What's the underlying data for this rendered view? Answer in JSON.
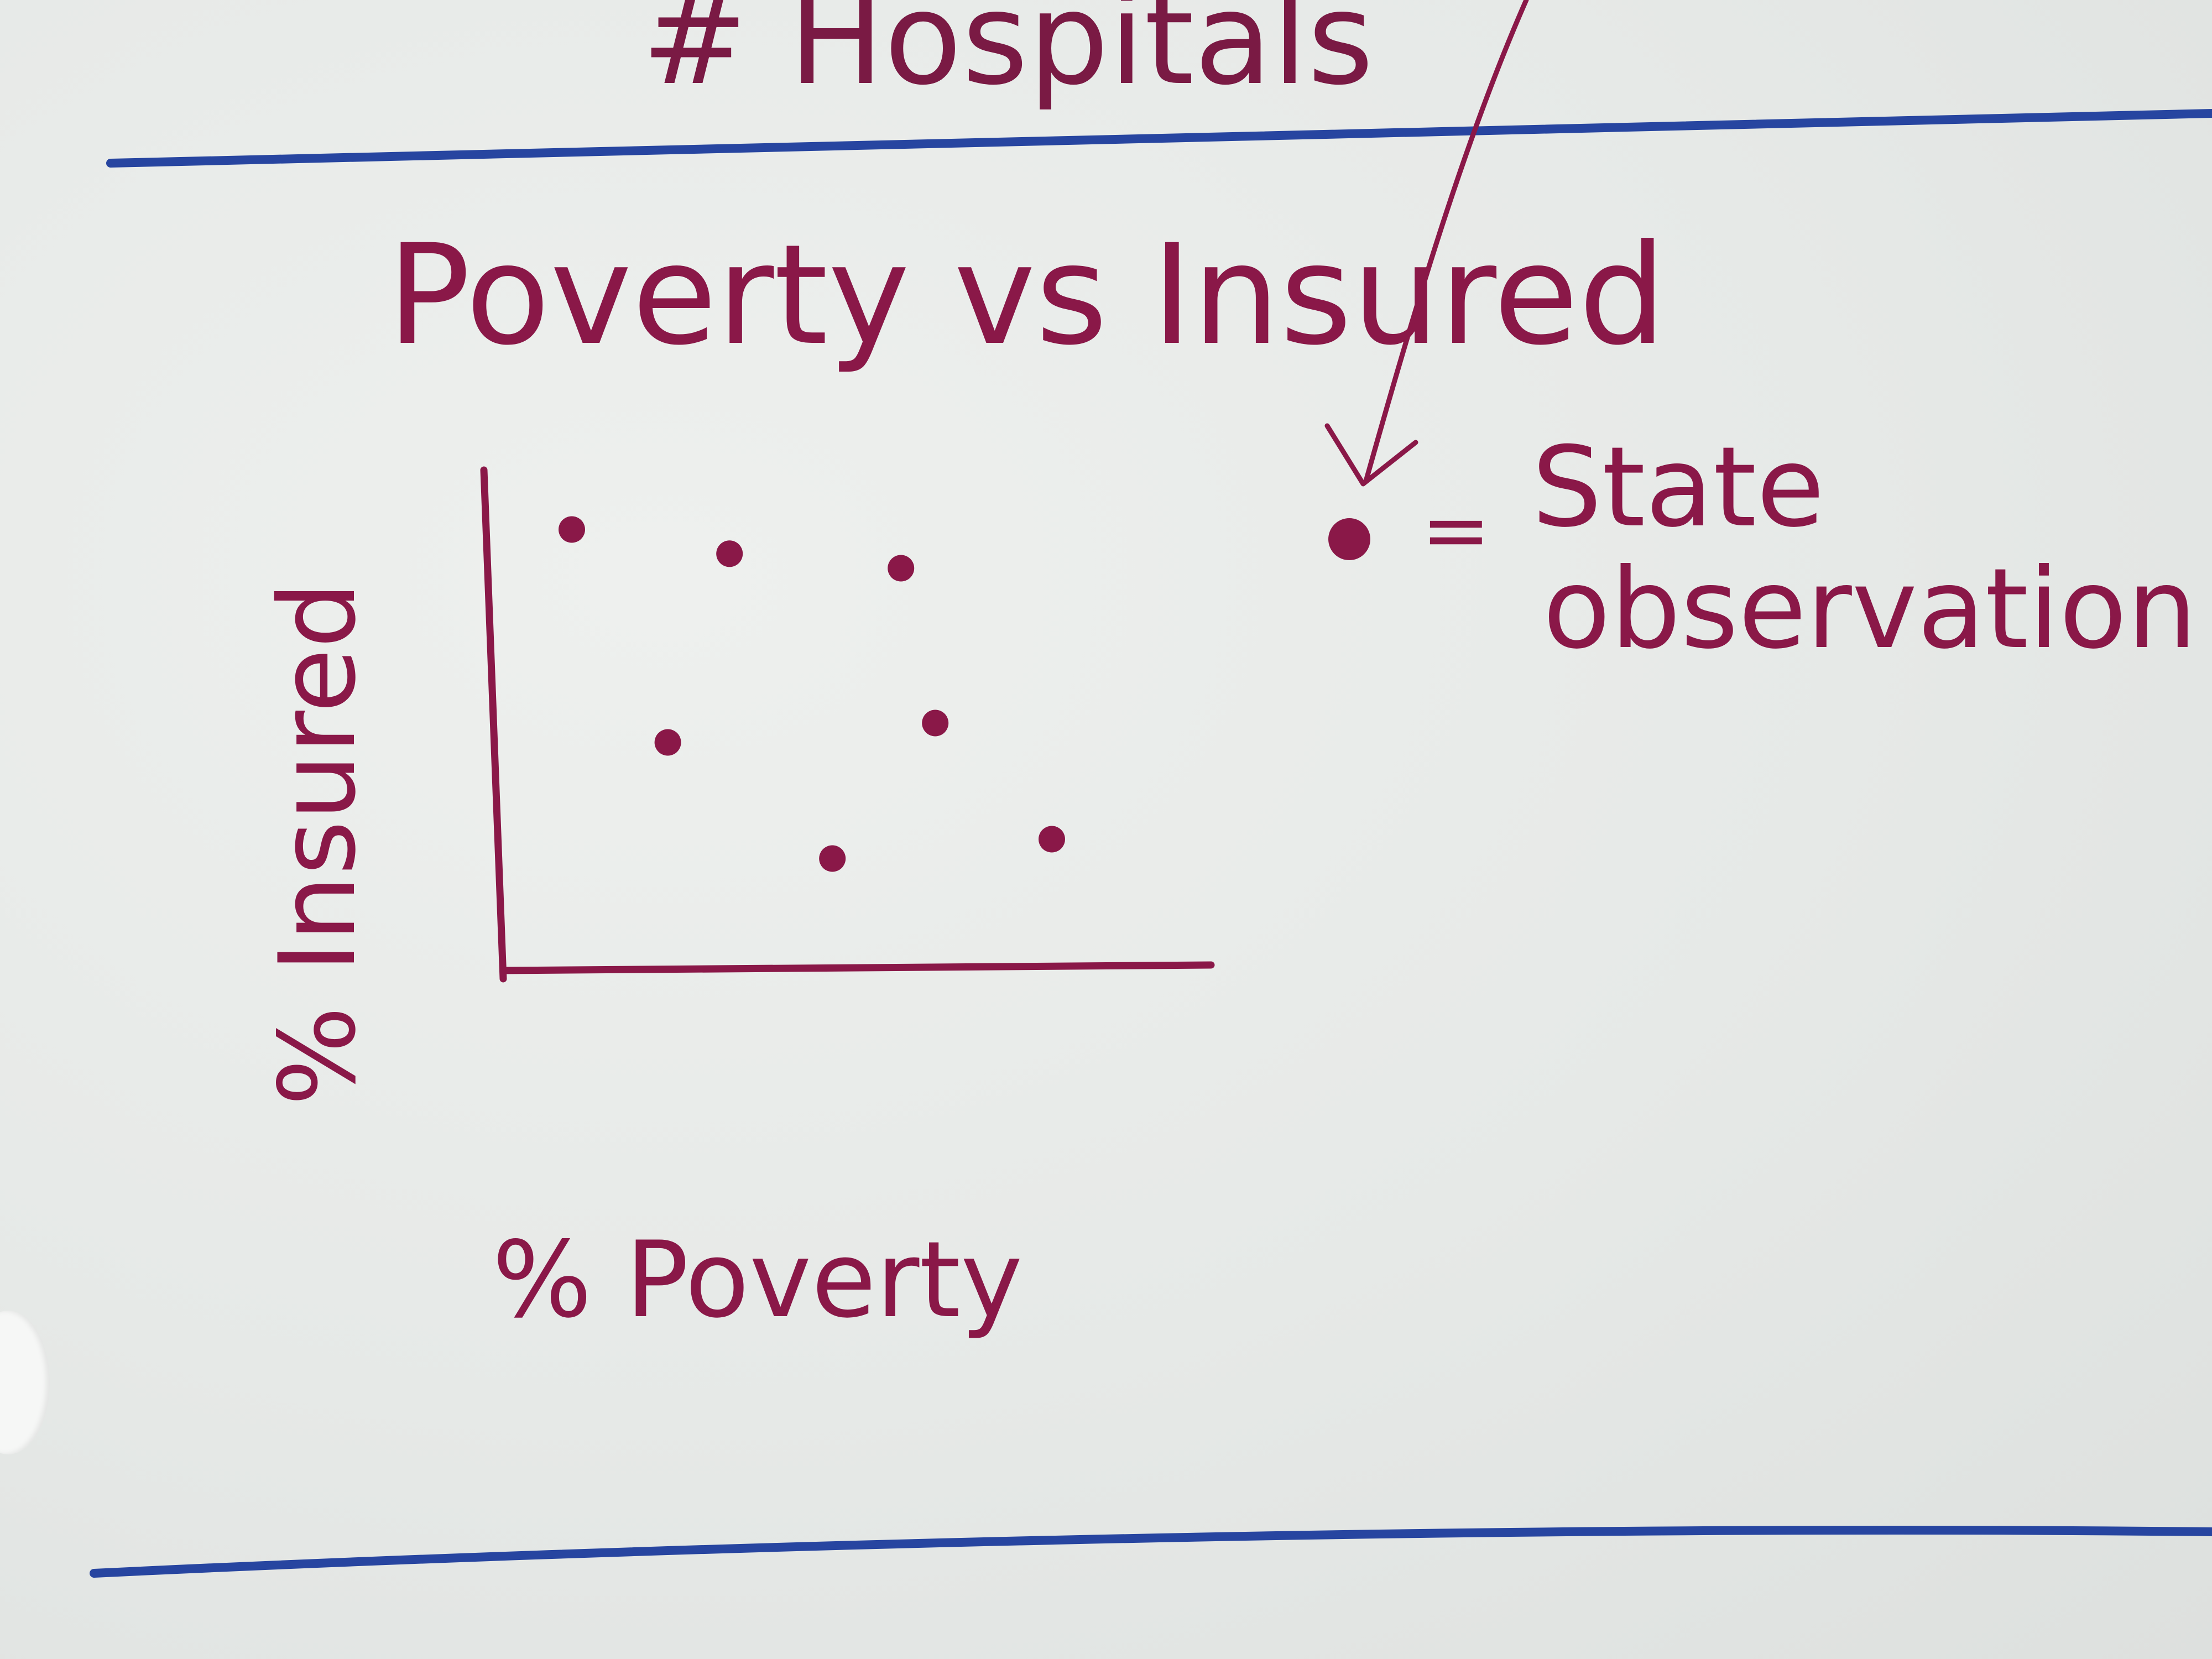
{
  "header": {
    "previous_section": "# Hospitals"
  },
  "legend": {
    "symbol_meaning_line1": "State",
    "symbol_meaning_line2": "observation"
  },
  "colors": {
    "ink": "#8a1848",
    "divider": "#2745a0",
    "paper": "#e9ebe9"
  },
  "chart_data": {
    "type": "scatter",
    "title": "Poverty vs Insured",
    "xlabel": "% Poverty",
    "ylabel": "% Insured",
    "xlim": [
      0,
      100
    ],
    "ylim": [
      0,
      100
    ],
    "grid": false,
    "legend_position": "right",
    "legend_label": "State observation",
    "points": [
      {
        "x": 10,
        "y": 90
      },
      {
        "x": 33,
        "y": 85
      },
      {
        "x": 58,
        "y": 82
      },
      {
        "x": 24,
        "y": 46
      },
      {
        "x": 63,
        "y": 50
      },
      {
        "x": 48,
        "y": 22
      },
      {
        "x": 80,
        "y": 26
      }
    ]
  }
}
